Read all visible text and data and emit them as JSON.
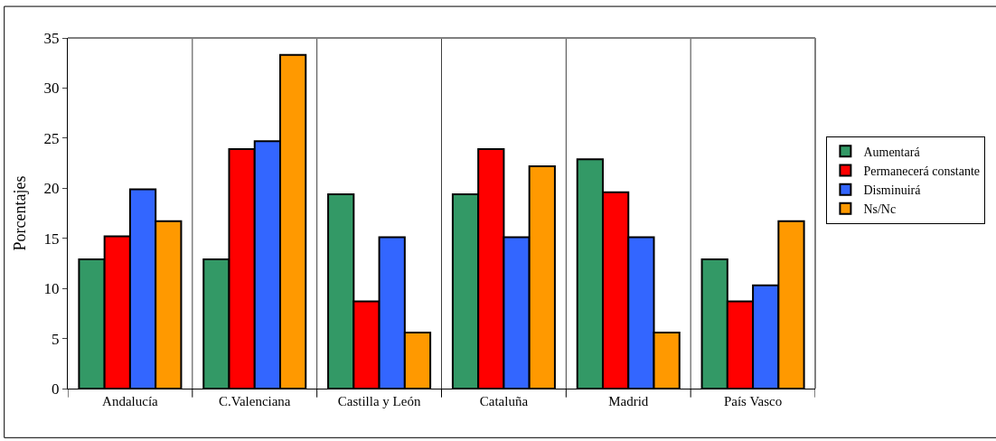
{
  "chart_data": {
    "type": "bar",
    "ylabel": "Porcentajes",
    "categories": [
      "Andalucía",
      "C.Valenciana",
      "Castilla y León",
      "Cataluña",
      "Madrid",
      "País Vasco"
    ],
    "series": [
      {
        "name": "Aumentará",
        "color": "#339966",
        "values": [
          12.9,
          12.9,
          19.4,
          19.4,
          22.9,
          12.9
        ]
      },
      {
        "name": "Permanecerá constante",
        "color": "#ff0000",
        "values": [
          15.2,
          23.9,
          8.7,
          23.9,
          19.6,
          8.7
        ]
      },
      {
        "name": "Disminuirá",
        "color": "#3366ff",
        "values": [
          19.9,
          24.7,
          15.1,
          15.1,
          15.1,
          10.3
        ]
      },
      {
        "name": "Ns/Nc",
        "color": "#ff9900",
        "values": [
          16.7,
          33.3,
          5.6,
          22.2,
          5.6,
          16.7
        ]
      }
    ],
    "ylim": [
      0,
      35
    ],
    "yticks": [
      0,
      5,
      10,
      15,
      20,
      25,
      30,
      35
    ],
    "grid": "x",
    "legend": "right"
  }
}
